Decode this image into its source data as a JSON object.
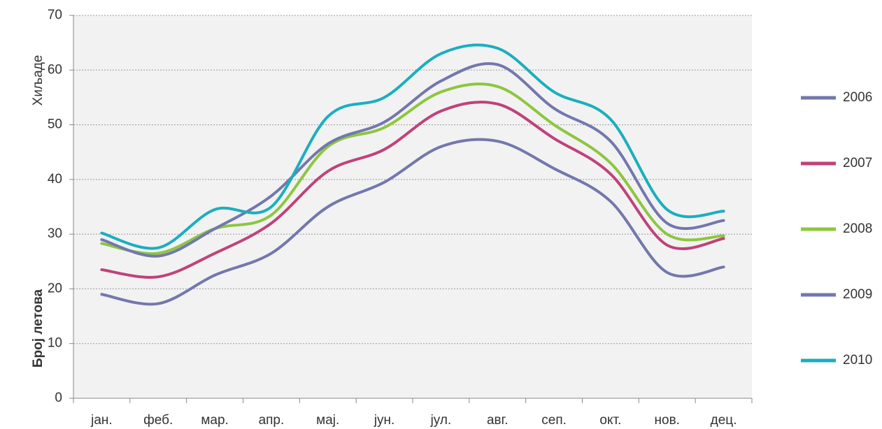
{
  "chart_data": {
    "type": "line",
    "axis_labels": [
      "Хиљаде",
      "Број летова"
    ],
    "categories": [
      "јан.",
      "феб.",
      "мар.",
      "апр.",
      "мај.",
      "јун.",
      "јул.",
      "авг.",
      "сеп.",
      "окт.",
      "нов.",
      "дец."
    ],
    "series": [
      {
        "name": "2006",
        "color": "#7377ad",
        "values": [
          19,
          17.3,
          22.5,
          26.5,
          35,
          39.5,
          46,
          47,
          42,
          36,
          23,
          24
        ]
      },
      {
        "name": "2007",
        "color": "#c0427a",
        "values": [
          23.5,
          22.2,
          26.5,
          32,
          41.5,
          45.5,
          52.5,
          53.8,
          47.5,
          41,
          28,
          29.2
        ]
      },
      {
        "name": "2008",
        "color": "#8dc63f",
        "values": [
          28.3,
          26.5,
          31,
          33.5,
          46,
          49.5,
          56,
          57,
          50,
          43,
          30,
          29.7
        ]
      },
      {
        "name": "2009",
        "color": "#7377ad",
        "values": [
          29,
          26,
          31,
          37,
          46.5,
          50.5,
          58,
          61,
          53,
          47,
          32,
          32.5
        ]
      },
      {
        "name": "2010",
        "color": "#1aafbf",
        "values": [
          30.2,
          27.5,
          34.5,
          35,
          51.5,
          55,
          63,
          64,
          56,
          51,
          34.5,
          34.2
        ]
      }
    ],
    "ylim": [
      0,
      70
    ],
    "yticks": [
      0,
      10,
      20,
      30,
      40,
      50,
      60,
      70
    ],
    "grid": true,
    "legend": "right"
  }
}
